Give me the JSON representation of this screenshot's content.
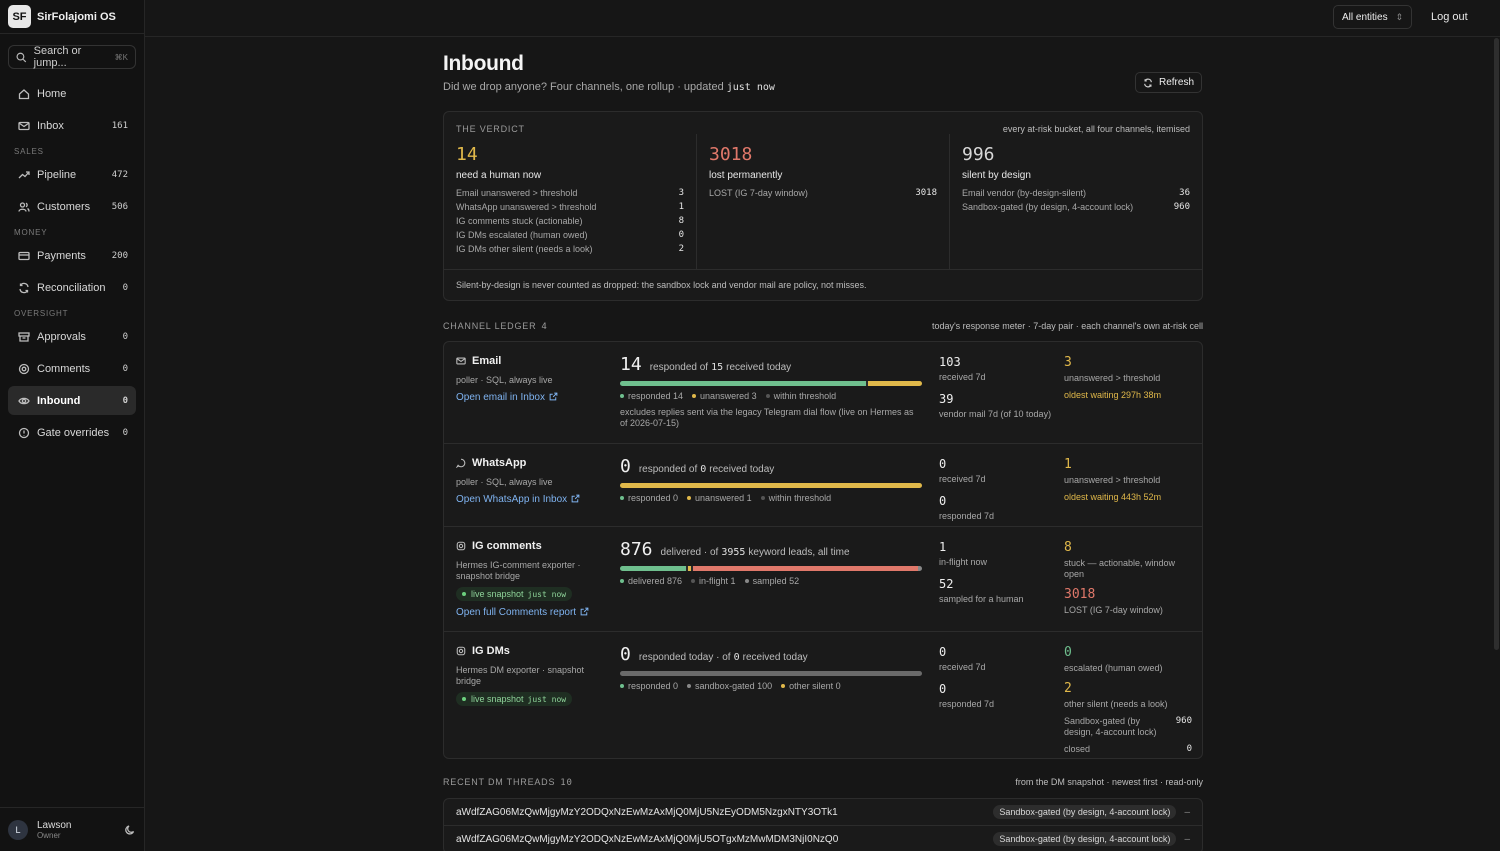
{
  "app": {
    "initials": "SF",
    "name": "SirFolajomi OS"
  },
  "search": {
    "placeholder": "Search or jump...",
    "shortcut": "⌘K"
  },
  "nav": {
    "home": {
      "label": "Home"
    },
    "inbox": {
      "label": "Inbox",
      "count": "161"
    },
    "sales_label": "SALES",
    "pipeline": {
      "label": "Pipeline",
      "count": "472"
    },
    "customers": {
      "label": "Customers",
      "count": "506"
    },
    "money_label": "MONEY",
    "payments": {
      "label": "Payments",
      "count": "200"
    },
    "reconciliation": {
      "label": "Reconciliation",
      "count": "0"
    },
    "oversight_label": "OVERSIGHT",
    "approvals": {
      "label": "Approvals",
      "count": "0"
    },
    "comments": {
      "label": "Comments",
      "count": "0"
    },
    "inbound": {
      "label": "Inbound",
      "count": "0"
    },
    "gate": {
      "label": "Gate overrides",
      "count": "0"
    }
  },
  "user": {
    "initial": "L",
    "name": "Lawson",
    "role": "Owner"
  },
  "topbar": {
    "entity": "All entities",
    "logout": "Log out"
  },
  "page": {
    "title": "Inbound",
    "subtitle": "Did we drop anyone? Four channels, one rollup · updated",
    "updated": "just now",
    "refresh": "Refresh"
  },
  "verdict": {
    "label": "THE VERDICT",
    "note": "every at-risk bucket, all four channels, itemised",
    "human": {
      "value": "14",
      "caption": "need a human now",
      "rows": [
        {
          "label": "Email unanswered > threshold",
          "n": "3"
        },
        {
          "label": "WhatsApp unanswered > threshold",
          "n": "1"
        },
        {
          "label": "IG comments stuck (actionable)",
          "n": "8"
        },
        {
          "label": "IG DMs escalated (human owed)",
          "n": "0"
        },
        {
          "label": "IG DMs other silent (needs a look)",
          "n": "2"
        }
      ]
    },
    "lost": {
      "value": "3018",
      "caption": "lost permanently",
      "rows": [
        {
          "label": "LOST (IG 7-day window)",
          "n": "3018"
        }
      ]
    },
    "silent": {
      "value": "996",
      "caption": "silent by design",
      "rows": [
        {
          "label": "Email vendor (by-design-silent)",
          "n": "36"
        },
        {
          "label": "Sandbox-gated (by design, 4-account lock)",
          "n": "960"
        }
      ]
    },
    "footer": "Silent-by-design is never counted as dropped: the sandbox lock and vendor mail are policy, not misses."
  },
  "ledger": {
    "label": "CHANNEL LEDGER",
    "count": "4",
    "note": "today's response meter · 7-day pair · each channel's own at-risk cell",
    "email": {
      "name": "Email",
      "source": "poller · SQL, always live",
      "link": "Open email in Inbox",
      "big": "14",
      "pre": "responded of",
      "of": "15",
      "post": "received today",
      "legend": [
        "responded 14",
        "unanswered 3",
        "within threshold"
      ],
      "exclude": "excludes replies sent via the legacy Telegram dial flow (live on Hermes as of 2026-07-15)",
      "s1": "103",
      "s1l": "received 7d",
      "s2": "39",
      "s2l": "vendor mail 7d (of 10 today)",
      "r1": "3",
      "r1l": "unanswered > threshold",
      "oldest": "oldest waiting 297h 38m"
    },
    "whatsapp": {
      "name": "WhatsApp",
      "source": "poller · SQL, always live",
      "link": "Open WhatsApp in Inbox",
      "big": "0",
      "pre": "responded of",
      "of": "0",
      "post": "received today",
      "legend": [
        "responded 0",
        "unanswered 1",
        "within threshold"
      ],
      "s1": "0",
      "s1l": "received 7d",
      "s2": "0",
      "s2l": "responded 7d",
      "r1": "1",
      "r1l": "unanswered > threshold",
      "oldest": "oldest waiting 443h 52m"
    },
    "igc": {
      "name": "IG comments",
      "source": "Hermes IG-comment exporter · snapshot bridge",
      "snap": "live snapshot",
      "snap_t": "just now",
      "link": "Open full Comments report",
      "big": "876",
      "pre": "delivered · of",
      "of": "3955",
      "post": "keyword leads, all time",
      "legend": [
        "delivered 876",
        "in-flight 1",
        "sampled 52"
      ],
      "s1": "1",
      "s1l": "in-flight now",
      "s2": "52",
      "s2l": "sampled for a human",
      "r1": "8",
      "r1l": "stuck — actionable, window open",
      "r2": "3018",
      "r2l": "LOST (IG 7-day window)"
    },
    "igd": {
      "name": "IG DMs",
      "source": "Hermes DM exporter · snapshot bridge",
      "snap": "live snapshot",
      "snap_t": "just now",
      "big": "0",
      "pre": "responded today · of",
      "of": "0",
      "post": "received today",
      "legend": [
        "responded 0",
        "sandbox-gated 100",
        "other silent 0"
      ],
      "s1": "0",
      "s1l": "received 7d",
      "s2": "0",
      "s2l": "responded 7d",
      "r1": "0",
      "r1l": "escalated (human owed)",
      "r2": "2",
      "r2l": "other silent (needs a look)",
      "sg_label": "Sandbox-gated (by design, 4-account lock)",
      "sg_n": "960",
      "closed_label": "closed",
      "closed_n": "0"
    }
  },
  "threads": {
    "label": "RECENT DM THREADS",
    "count": "10",
    "note": "from the DM snapshot · newest first · read-only",
    "rows": [
      {
        "id": "aWdfZAG06MzQwMjgyMzY2ODQxNzEwMzAxMjQ0MjU5NzEyODM5NzgxNTY3OTk1",
        "badge": "Sandbox-gated (by design, 4-account lock)",
        "dash": "–"
      },
      {
        "id": "aWdfZAG06MzQwMjgyMzY2ODQxNzEwMzAxMjQ0MjU5OTgxMzMwMDM3NjI0NzQ0",
        "badge": "Sandbox-gated (by design, 4-account lock)",
        "dash": "–"
      }
    ]
  },
  "colors": {
    "amber": "#e0b84a",
    "red": "#e0786a",
    "green": "#6fbf8e",
    "link": "#7fb3f0"
  }
}
